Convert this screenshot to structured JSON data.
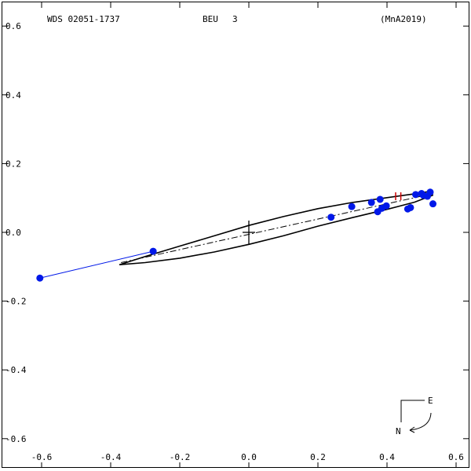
{
  "header": {
    "left": "WDS 02051-1737",
    "center_name": "BEU",
    "center_num": "3",
    "right": "(MnA2019)"
  },
  "compass": {
    "east": "E",
    "north": "N"
  },
  "colors": {
    "frame": "#000000",
    "points": "#0018e8",
    "residual": "#0018e8",
    "latest": "#cc0000"
  },
  "chart_data": {
    "type": "scatter",
    "title": "WDS 02051-1737",
    "xlim": [
      -0.65,
      0.65
    ],
    "ylim": [
      -0.68,
      0.68
    ],
    "x_ticks": [
      -0.6,
      -0.4,
      -0.2,
      0.0,
      0.2,
      0.4,
      0.6
    ],
    "x_tick_labels": [
      "-0.6",
      "-0.4",
      "-0.2",
      "0.0",
      "0.2",
      "0.4",
      "0.6"
    ],
    "y_ticks": [
      0.6,
      0.4,
      0.2,
      0.0,
      -0.2,
      -0.4,
      -0.6
    ],
    "y_tick_labels": [
      "0.6",
      "0.4",
      "0.2",
      "0.0",
      "-0.2",
      "-0.4",
      "-0.6"
    ],
    "observations": [
      {
        "x": -0.277,
        "y": -0.055
      },
      {
        "x": 0.238,
        "y": 0.044
      },
      {
        "x": 0.298,
        "y": 0.075
      },
      {
        "x": 0.355,
        "y": 0.087
      },
      {
        "x": 0.373,
        "y": 0.06
      },
      {
        "x": 0.38,
        "y": 0.096
      },
      {
        "x": 0.385,
        "y": 0.07
      },
      {
        "x": 0.398,
        "y": 0.077
      },
      {
        "x": 0.46,
        "y": 0.068
      },
      {
        "x": 0.468,
        "y": 0.072
      },
      {
        "x": 0.483,
        "y": 0.11
      },
      {
        "x": 0.5,
        "y": 0.113
      },
      {
        "x": 0.505,
        "y": 0.108
      },
      {
        "x": 0.517,
        "y": 0.105
      },
      {
        "x": 0.525,
        "y": 0.117
      },
      {
        "x": 0.533,
        "y": 0.083
      }
    ],
    "outlier": {
      "x": -0.605,
      "y": -0.133
    },
    "orbit_ellipse": [
      {
        "x": -0.375,
        "y": -0.094
      },
      {
        "x": -0.3,
        "y": -0.07
      },
      {
        "x": -0.2,
        "y": -0.04
      },
      {
        "x": -0.1,
        "y": -0.01
      },
      {
        "x": 0.0,
        "y": 0.02
      },
      {
        "x": 0.1,
        "y": 0.046
      },
      {
        "x": 0.2,
        "y": 0.069
      },
      {
        "x": 0.3,
        "y": 0.087
      },
      {
        "x": 0.4,
        "y": 0.101
      },
      {
        "x": 0.48,
        "y": 0.112
      },
      {
        "x": 0.53,
        "y": 0.12
      },
      {
        "x": 0.532,
        "y": 0.108
      },
      {
        "x": 0.48,
        "y": 0.088
      },
      {
        "x": 0.4,
        "y": 0.067
      },
      {
        "x": 0.3,
        "y": 0.043
      },
      {
        "x": 0.2,
        "y": 0.018
      },
      {
        "x": 0.1,
        "y": -0.01
      },
      {
        "x": 0.0,
        "y": -0.035
      },
      {
        "x": -0.1,
        "y": -0.057
      },
      {
        "x": -0.2,
        "y": -0.075
      },
      {
        "x": -0.3,
        "y": -0.088
      },
      {
        "x": -0.375,
        "y": -0.094
      }
    ],
    "line_of_nodes": [
      {
        "x": -0.37,
        "y": -0.088
      },
      {
        "x": 0.53,
        "y": 0.112
      }
    ],
    "latest_marks": [
      {
        "x": 0.425,
        "y": 0.105
      },
      {
        "x": 0.44,
        "y": 0.105
      }
    ],
    "origin": {
      "x": 0.0,
      "y": 0.0
    }
  }
}
